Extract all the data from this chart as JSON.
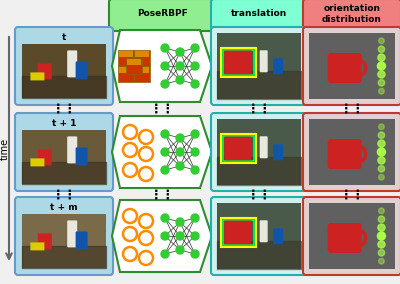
{
  "bg_color": "#f0f0f0",
  "col_headers": [
    "PoseRBPF",
    "translation",
    "orientation\ndistribution"
  ],
  "header_bg_colors": [
    "#90ee90",
    "#7fffd4",
    "#f08080"
  ],
  "header_border_colors": [
    "#2e8b2e",
    "#20b2aa",
    "#c0392b"
  ],
  "input_border_color": "#6699cc",
  "input_header_bg": "#add8e6",
  "poserbpf_border_color": "#2e8b2e",
  "translation_border_color": "#20b2aa",
  "orientation_border_color": "#c0392b",
  "particle_color": "#ff8c00",
  "node_color": "#32cd32",
  "edge_color": "#333333",
  "time_label": "time",
  "time_arrow_color": "#666666",
  "row_labels": [
    "t",
    "t + 1",
    "t + m"
  ],
  "dots": "⋮",
  "photo_colors": [
    "#5a4a2a",
    "#6b5a3a",
    "#7a6a4a"
  ],
  "trans_photo_colors": [
    "#4a5a4a",
    "#4a5a4a",
    "#4a5a4a"
  ],
  "orient_bg_color": "#606060",
  "mug_color": "#cc2222",
  "sparkle_color": "#aaff44"
}
